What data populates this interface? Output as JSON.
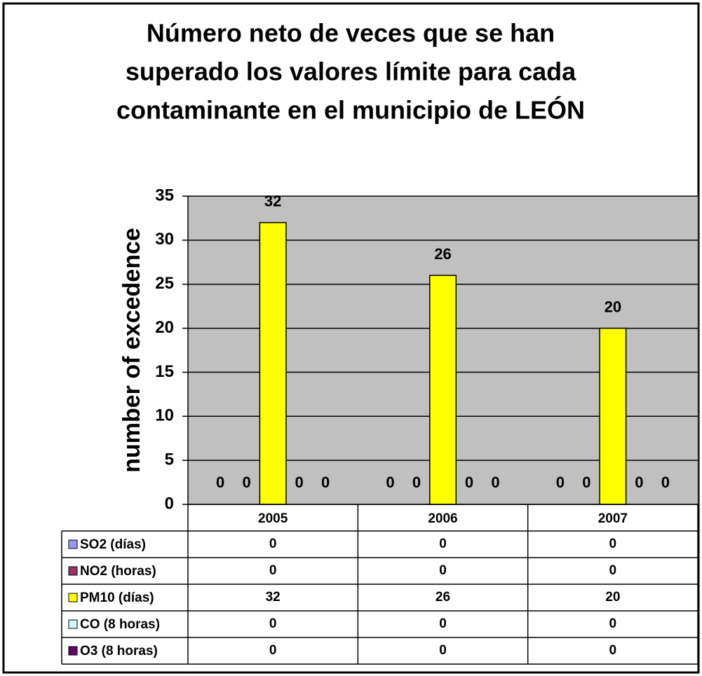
{
  "chart_data": {
    "type": "bar",
    "title": [
      "Número neto de veces que se han",
      "superado los valores límite para cada",
      "contaminante en el municipio de LEÓN"
    ],
    "ylabel": "number of excedence",
    "categories": [
      "2005",
      "2006",
      "2007"
    ],
    "series": [
      {
        "name": "SO2 (días)",
        "color": "#9999ff",
        "values": [
          0,
          0,
          0
        ]
      },
      {
        "name": "NO2 (horas)",
        "color": "#993366",
        "values": [
          0,
          0,
          0
        ]
      },
      {
        "name": "PM10 (días)",
        "color": "#ffff00",
        "values": [
          32,
          26,
          20
        ]
      },
      {
        "name": "CO (8 horas)",
        "color": "#ccffff",
        "values": [
          0,
          0,
          0
        ]
      },
      {
        "name": "O3 (8 horas)",
        "color": "#660066",
        "values": [
          0,
          0,
          0
        ]
      }
    ],
    "ylim": [
      0,
      35
    ],
    "yticks": [
      0,
      5,
      10,
      15,
      20,
      25,
      30,
      35
    ],
    "grid": true
  }
}
